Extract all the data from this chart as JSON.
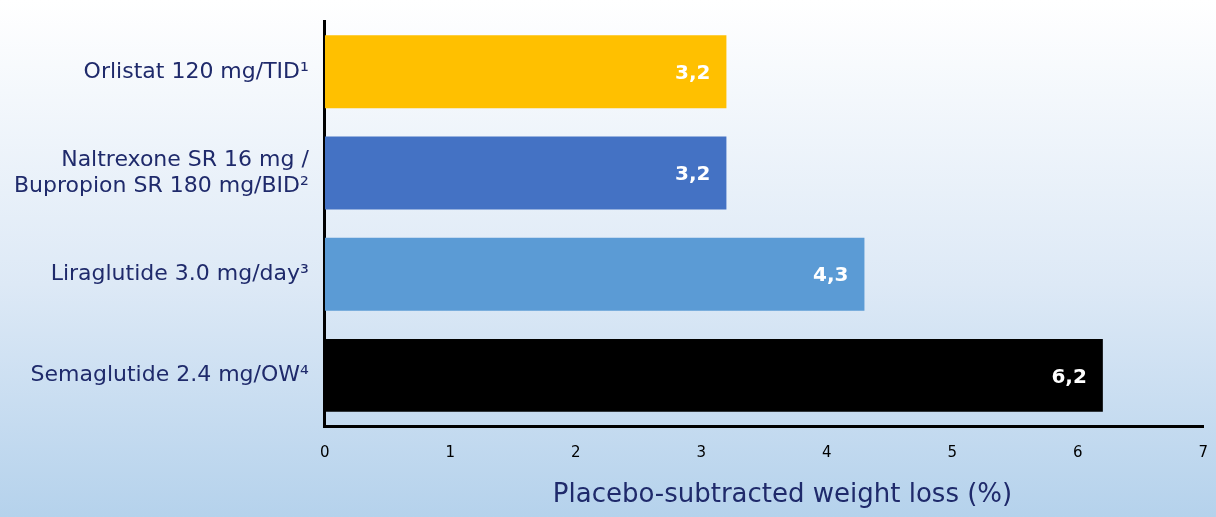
{
  "chart_data": {
    "type": "bar",
    "orientation": "horizontal",
    "xlabel": "Placebo-subtracted weight loss (%)",
    "categories": [
      "Orlistat 120 mg/TID¹",
      "Naltrexone SR 16 mg / Bupropion SR 180 mg/BID²",
      "Liraglutide 3.0 mg/day³",
      "Semaglutide 2.4 mg/OW⁴"
    ],
    "values": [
      3.2,
      3.2,
      4.3,
      6.2
    ],
    "colors": [
      "#ffc000",
      "#4472c4",
      "#5b9bd5",
      "#000000"
    ],
    "value_labels": [
      "3,2",
      "3,2",
      "4,3",
      "6,2"
    ],
    "xlim": [
      0,
      7
    ],
    "xticks": [
      0,
      1,
      2,
      3,
      4,
      5,
      6,
      7
    ],
    "grid": false,
    "legend": false
  }
}
